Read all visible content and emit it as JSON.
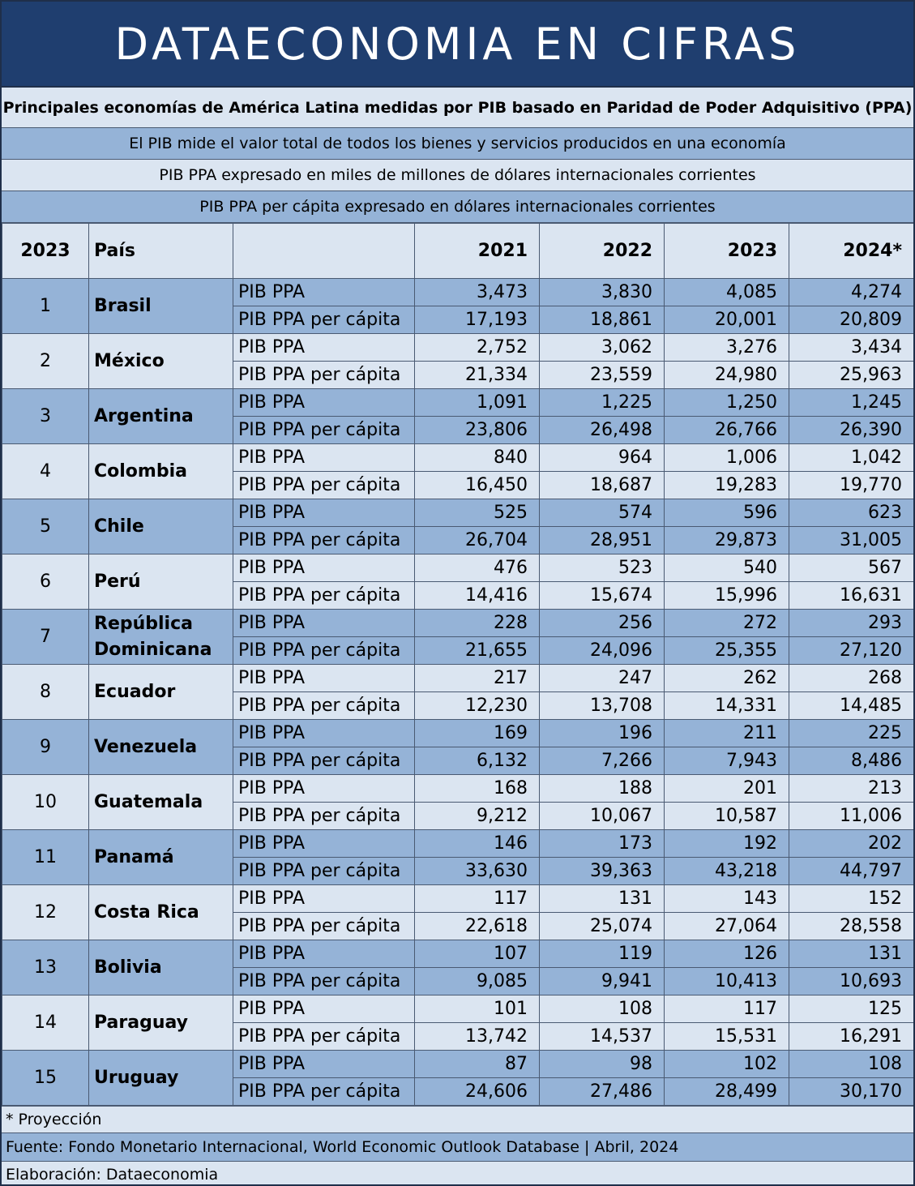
{
  "banner": {
    "title": "DATAECONOMIA EN CIFRAS"
  },
  "info": {
    "subtitle": "Principales economías de América Latina medidas por PIB basado en Paridad de Poder Adquisitivo (PPA)",
    "line1": "El PIB mide el valor total de todos los bienes y servicios producidos en una economía",
    "line2": "PIB PPA expresado en miles de millones de dólares internacionales corrientes",
    "line3": "PIB PPA per cápita expresado en dólares internacionales corrientes"
  },
  "table": {
    "headers": {
      "rank": "2023",
      "country": "País",
      "metric": "",
      "y2021": "2021",
      "y2022": "2022",
      "y2023": "2023",
      "y2024": "2024*"
    },
    "metric_labels": {
      "gdp": "PIB PPA",
      "gdp_pc": "PIB PPA per cápita"
    },
    "rows": [
      {
        "rank": "1",
        "country": "Brasil",
        "gdp": [
          "3,473",
          "3,830",
          "4,085",
          "4,274"
        ],
        "gdp_pc": [
          "17,193",
          "18,861",
          "20,001",
          "20,809"
        ]
      },
      {
        "rank": "2",
        "country": "México",
        "gdp": [
          "2,752",
          "3,062",
          "3,276",
          "3,434"
        ],
        "gdp_pc": [
          "21,334",
          "23,559",
          "24,980",
          "25,963"
        ]
      },
      {
        "rank": "3",
        "country": "Argentina",
        "gdp": [
          "1,091",
          "1,225",
          "1,250",
          "1,245"
        ],
        "gdp_pc": [
          "23,806",
          "26,498",
          "26,766",
          "26,390"
        ]
      },
      {
        "rank": "4",
        "country": "Colombia",
        "gdp": [
          "840",
          "964",
          "1,006",
          "1,042"
        ],
        "gdp_pc": [
          "16,450",
          "18,687",
          "19,283",
          "19,770"
        ]
      },
      {
        "rank": "5",
        "country": "Chile",
        "gdp": [
          "525",
          "574",
          "596",
          "623"
        ],
        "gdp_pc": [
          "26,704",
          "28,951",
          "29,873",
          "31,005"
        ]
      },
      {
        "rank": "6",
        "country": "Perú",
        "gdp": [
          "476",
          "523",
          "540",
          "567"
        ],
        "gdp_pc": [
          "14,416",
          "15,674",
          "15,996",
          "16,631"
        ]
      },
      {
        "rank": "7",
        "country": "República Dominicana",
        "gdp": [
          "228",
          "256",
          "272",
          "293"
        ],
        "gdp_pc": [
          "21,655",
          "24,096",
          "25,355",
          "27,120"
        ]
      },
      {
        "rank": "8",
        "country": "Ecuador",
        "gdp": [
          "217",
          "247",
          "262",
          "268"
        ],
        "gdp_pc": [
          "12,230",
          "13,708",
          "14,331",
          "14,485"
        ]
      },
      {
        "rank": "9",
        "country": "Venezuela",
        "gdp": [
          "169",
          "196",
          "211",
          "225"
        ],
        "gdp_pc": [
          "6,132",
          "7,266",
          "7,943",
          "8,486"
        ]
      },
      {
        "rank": "10",
        "country": "Guatemala",
        "gdp": [
          "168",
          "188",
          "201",
          "213"
        ],
        "gdp_pc": [
          "9,212",
          "10,067",
          "10,587",
          "11,006"
        ]
      },
      {
        "rank": "11",
        "country": "Panamá",
        "gdp": [
          "146",
          "173",
          "192",
          "202"
        ],
        "gdp_pc": [
          "33,630",
          "39,363",
          "43,218",
          "44,797"
        ]
      },
      {
        "rank": "12",
        "country": "Costa Rica",
        "gdp": [
          "117",
          "131",
          "143",
          "152"
        ],
        "gdp_pc": [
          "22,618",
          "25,074",
          "27,064",
          "28,558"
        ]
      },
      {
        "rank": "13",
        "country": "Bolivia",
        "gdp": [
          "107",
          "119",
          "126",
          "131"
        ],
        "gdp_pc": [
          "9,085",
          "9,941",
          "10,413",
          "10,693"
        ]
      },
      {
        "rank": "14",
        "country": "Paraguay",
        "gdp": [
          "101",
          "108",
          "117",
          "125"
        ],
        "gdp_pc": [
          "13,742",
          "14,537",
          "15,531",
          "16,291"
        ]
      },
      {
        "rank": "15",
        "country": "Uruguay",
        "gdp": [
          "87",
          "98",
          "102",
          "108"
        ],
        "gdp_pc": [
          "24,606",
          "27,486",
          "28,499",
          "30,170"
        ]
      }
    ]
  },
  "footer": {
    "note": "* Proyección",
    "source": "Fuente: Fondo Monetario Internacional, World Economic Outlook Database | Abril, 2024",
    "credit": "Elaboración: Dataeconomia"
  },
  "colors": {
    "banner": "#1f3e6f",
    "light_row": "#dbe5f1",
    "blue_row": "#95b3d7"
  }
}
